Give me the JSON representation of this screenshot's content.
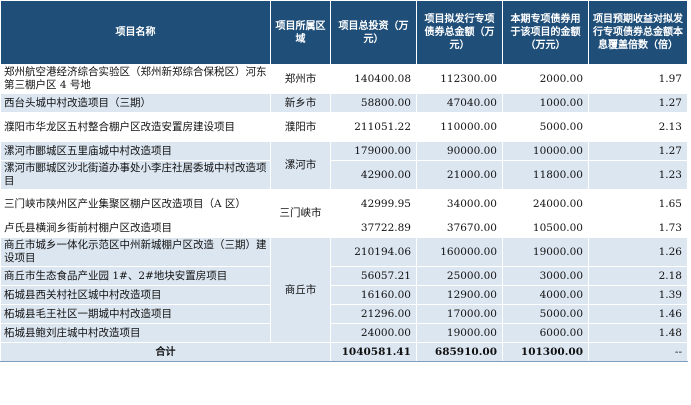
{
  "headers": {
    "name": "项目名称",
    "region": "项目所属区域",
    "total_invest": "项目总投资（万元）",
    "bond_total": "项目拟发行专项债券总金额（万元）",
    "bond_current": "本期专项债券用于该项目的金额（万元）",
    "coverage": "项目预期收益对拟发行专项债券总金额本息覆盖倍数（倍）"
  },
  "rows": [
    {
      "name": "郑州航空港经济综合实验区（郑州新郑综合保税区）河东第三棚户区 4 号地",
      "total_invest": "140400.08",
      "bond_total": "112300.00",
      "bond_current": "2000.00",
      "coverage": "1.97"
    },
    {
      "name": "西台头城中村改造项目（三期）",
      "total_invest": "58800.00",
      "bond_total": "47040.00",
      "bond_current": "1000.00",
      "coverage": "1.27"
    },
    {
      "name": "濮阳市华龙区五村整合棚户区改造安置房建设项目",
      "total_invest": "211051.22",
      "bond_total": "110000.00",
      "bond_current": "5000.00",
      "coverage": "2.13"
    },
    {
      "name": "漯河市郾城区五里庙城中村改造项目",
      "total_invest": "179000.00",
      "bond_total": "90000.00",
      "bond_current": "10000.00",
      "coverage": "1.27"
    },
    {
      "name": "漯河市郾城区沙北街道办事处小李庄社居委城中村改造项目",
      "total_invest": "42900.00",
      "bond_total": "21000.00",
      "bond_current": "11800.00",
      "coverage": "1.23"
    },
    {
      "name": "三门峡市陕州区产业集聚区棚户区改造项目（A 区）",
      "total_invest": "42999.95",
      "bond_total": "34000.00",
      "bond_current": "24000.00",
      "coverage": "1.65"
    },
    {
      "name": "卢氏县横涧乡街前村棚户区改造项目",
      "total_invest": "37722.89",
      "bond_total": "37670.00",
      "bond_current": "10500.00",
      "coverage": "1.73"
    },
    {
      "name": "商丘市城乡一体化示范区中州新城棚户区改造（三期）建设项目",
      "total_invest": "210194.06",
      "bond_total": "160000.00",
      "bond_current": "19000.00",
      "coverage": "1.26"
    },
    {
      "name": "商丘市生态食品产业园 1#、2#地块安置房项目",
      "total_invest": "56057.21",
      "bond_total": "25000.00",
      "bond_current": "3000.00",
      "coverage": "2.18"
    },
    {
      "name": "柘城县西关村社区城中村改造项目",
      "total_invest": "16160.00",
      "bond_total": "12900.00",
      "bond_current": "4000.00",
      "coverage": "1.39"
    },
    {
      "name": "柘城县毛王社区一期城中村改造项目",
      "total_invest": "21296.00",
      "bond_total": "17000.00",
      "bond_current": "5000.00",
      "coverage": "1.46"
    },
    {
      "name": "柘城县鲍刘庄城中村改造项目",
      "total_invest": "24000.00",
      "bond_total": "19000.00",
      "bond_current": "6000.00",
      "coverage": "1.48"
    }
  ],
  "regions": {
    "zhengzhou": "郑州市",
    "xinxiang": "新乡市",
    "puyang": "濮阳市",
    "luohe": "漯河市",
    "sanmenxia": "三门峡市",
    "shangqiu": "商丘市"
  },
  "total": {
    "label": "合计",
    "total_invest": "1040581.41",
    "bond_total": "685910.00",
    "bond_current": "101300.00",
    "coverage": "--"
  },
  "colors": {
    "header_bg": "#1f4e79",
    "stripe": "#dce6f1"
  }
}
